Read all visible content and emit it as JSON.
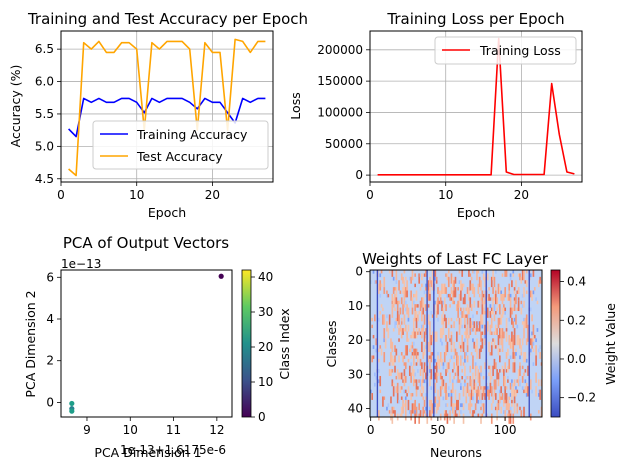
{
  "chart_data": [
    {
      "id": "acc",
      "type": "line",
      "title": "Training and Test Accuracy per Epoch",
      "xlabel": "Epoch",
      "ylabel": "Accuracy (%)",
      "xlim": [
        0,
        28
      ],
      "ylim": [
        4.45,
        6.78
      ],
      "xticks": [
        0,
        10,
        20
      ],
      "yticks": [
        4.5,
        5.0,
        5.5,
        6.0,
        6.5
      ],
      "ytick_labels": [
        "4.5",
        "5.0",
        "5.5",
        "6.0",
        "6.5"
      ],
      "grid": true,
      "legend": "lower-right",
      "x": [
        1,
        2,
        3,
        4,
        5,
        6,
        7,
        8,
        9,
        10,
        11,
        12,
        13,
        14,
        15,
        16,
        17,
        18,
        19,
        20,
        21,
        22,
        23,
        24,
        25,
        26,
        27
      ],
      "series": [
        {
          "name": "Training Accuracy",
          "color": "#0000ff",
          "values": [
            5.27,
            5.15,
            5.74,
            5.68,
            5.74,
            5.68,
            5.68,
            5.74,
            5.74,
            5.68,
            5.52,
            5.74,
            5.68,
            5.74,
            5.74,
            5.74,
            5.68,
            5.58,
            5.74,
            5.68,
            5.68,
            5.52,
            5.36,
            5.74,
            5.68,
            5.74,
            5.74
          ]
        },
        {
          "name": "Test Accuracy",
          "color": "#ffa500",
          "values": [
            4.65,
            4.55,
            6.6,
            6.5,
            6.62,
            6.45,
            6.45,
            6.6,
            6.6,
            6.5,
            5.25,
            6.6,
            6.5,
            6.62,
            6.62,
            6.62,
            6.5,
            5.25,
            6.6,
            6.45,
            6.45,
            5.25,
            6.65,
            6.62,
            6.45,
            6.62,
            6.62
          ]
        }
      ]
    },
    {
      "id": "loss",
      "type": "line",
      "title": "Training Loss per Epoch",
      "xlabel": "Epoch",
      "ylabel": "Loss",
      "xlim": [
        0,
        28
      ],
      "ylim": [
        -11000,
        230000
      ],
      "xticks": [
        0,
        10,
        20
      ],
      "yticks": [
        0,
        50000,
        100000,
        150000,
        200000
      ],
      "ytick_labels": [
        "0",
        "50000",
        "100000",
        "150000",
        "200000"
      ],
      "grid": true,
      "legend": "top-right",
      "x": [
        1,
        2,
        3,
        4,
        5,
        6,
        7,
        8,
        9,
        10,
        11,
        12,
        13,
        14,
        15,
        16,
        17,
        18,
        19,
        20,
        21,
        22,
        23,
        24,
        25,
        26,
        27
      ],
      "series": [
        {
          "name": "Training Loss",
          "color": "#ff0000",
          "values": [
            500,
            500,
            500,
            500,
            500,
            500,
            500,
            500,
            500,
            500,
            500,
            500,
            500,
            500,
            500,
            500,
            218000,
            5000,
            1000,
            1000,
            1000,
            1000,
            1000,
            146000,
            65000,
            5000,
            2000
          ]
        }
      ]
    },
    {
      "id": "pca",
      "type": "scatter",
      "title": "PCA of Output Vectors",
      "xlabel": "PCA Dimension 1",
      "ylabel": "PCA Dimension 2",
      "x_offset_text": "1e-13+1.6175e-6",
      "y_offset_text": "1e−13",
      "xlim": [
        8.4,
        12.35
      ],
      "ylim": [
        -0.7,
        6.35
      ],
      "xticks": [
        9,
        10,
        11,
        12
      ],
      "yticks": [
        0,
        2,
        4,
        6
      ],
      "points": [
        {
          "x": 12.1,
          "y": 6.05,
          "class": 0
        },
        {
          "x": 8.65,
          "y": -0.05,
          "class": 22
        },
        {
          "x": 8.65,
          "y": -0.3,
          "class": 21
        },
        {
          "x": 8.65,
          "y": -0.42,
          "class": 22
        }
      ],
      "colorbar": {
        "label": "Class Index",
        "range": [
          0,
          42
        ],
        "ticks": [
          0,
          10,
          20,
          30,
          40
        ],
        "colormap": "viridis"
      }
    },
    {
      "id": "weights",
      "type": "heatmap",
      "title": "Weights of Last FC Layer",
      "xlabel": "Neurons",
      "ylabel": "Classes",
      "rows": 43,
      "cols": 128,
      "xticks": [
        0,
        50,
        100
      ],
      "yticks": [
        0,
        10,
        20,
        30,
        40
      ],
      "dark_blue_columns": [
        5,
        42,
        47,
        86,
        118
      ],
      "colorbar": {
        "label": "Weight Value",
        "range": [
          -0.3,
          0.46
        ],
        "ticks": [
          -0.2,
          0.0,
          0.2,
          0.4
        ],
        "tick_labels": [
          "−0.2",
          "0.0",
          "0.2",
          "0.4"
        ],
        "colormap": "coolwarm"
      }
    }
  ]
}
